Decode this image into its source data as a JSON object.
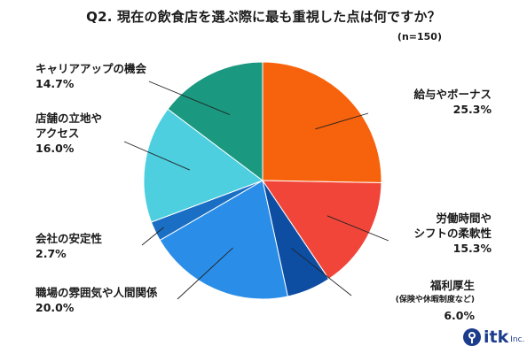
{
  "title": "Q2. 現在の飲食店を選ぶ際に最も重視した点は何ですか？",
  "note": "(n=150)",
  "logo": {
    "name": "itk",
    "suffix": "Inc."
  },
  "chart_data": {
    "type": "pie",
    "title": "Q2. 現在の飲食店を選ぶ際に最も重視した点は何ですか？",
    "note": "(n=150)",
    "start_angle_deg": 0,
    "direction": "clockwise",
    "slices": [
      {
        "label": "給与やボーナス",
        "value": 25.3,
        "pct": "25.3%",
        "color": "#f7630c"
      },
      {
        "label": "労働時間やシフトの柔軟性",
        "line1": "労働時間や",
        "line2": "シフトの柔軟性",
        "value": 15.3,
        "pct": "15.3%",
        "color": "#f1453a"
      },
      {
        "label": "福利厚生",
        "sublabel": "(保険や休暇制度など)",
        "value": 6.0,
        "pct": "6.0%",
        "color": "#0d4ea3"
      },
      {
        "label": "職場の雰囲気や人間関係",
        "value": 20.0,
        "pct": "20.0%",
        "color": "#2a8ee8"
      },
      {
        "label": "会社の安定性",
        "value": 2.7,
        "pct": "2.7%",
        "color": "#1a6fc4"
      },
      {
        "label": "店舗の立地やアクセス",
        "line1": "店舗の立地や",
        "line2": "アクセス",
        "value": 16.0,
        "pct": "16.0%",
        "color": "#4dcfe0"
      },
      {
        "label": "キャリアアップの機会",
        "value": 14.7,
        "pct": "14.7%",
        "color": "#1a9880"
      }
    ]
  }
}
